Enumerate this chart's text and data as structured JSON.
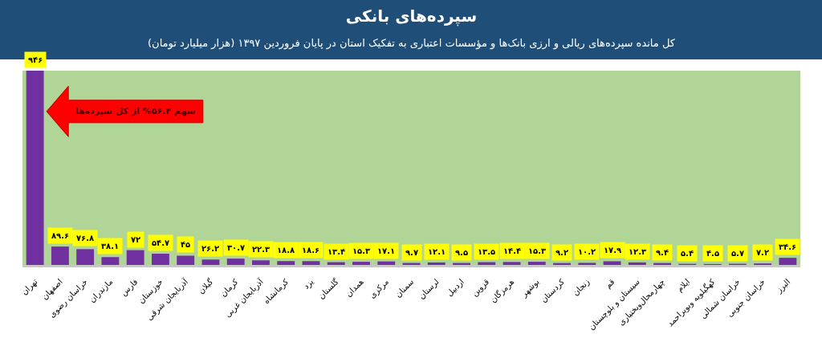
{
  "chart_data": {
    "type": "bar",
    "title": "سپرده‌های بانکی",
    "subtitle": "کل مانده سپرده‌های ریالی و ارزی بانک‌ها و مؤسسات اعتباری به تفکیک استان در پایان فروردین ۱۳۹۷ (هزار میلیارد تومان)",
    "annotations": [
      "سهم ۵۶.۴% از کل سپرده‌ها"
    ],
    "categories": [
      "تهران",
      "اصفهان",
      "خراسان رضوی",
      "مازندران",
      "فارس",
      "خوزستان",
      "آذربایجان شرقی",
      "گیلان",
      "کرمان",
      "آذربایجان غربی",
      "کرمانشاه",
      "یزد",
      "گلستان",
      "همدان",
      "مرکزی",
      "سمنان",
      "لرستان",
      "اردبیل",
      "قزوین",
      "هرمزگان",
      "بوشهر",
      "کردستان",
      "زنجان",
      "قم",
      "سیستان و بلوچستان",
      "چهارمحال‌وبختیاری",
      "ایلام",
      "کهگیلویه وبویراحمد",
      "خراسان شمالی",
      "خراسان جنوبی",
      "البرز"
    ],
    "values": [
      946,
      89.6,
      76.8,
      38.1,
      72,
      54.7,
      45,
      26.2,
      30.7,
      22.3,
      18.8,
      18.6,
      13.4,
      15.3,
      17.1,
      9.7,
      12.1,
      9.5,
      13.5,
      14.4,
      15.3,
      9.2,
      10.2,
      17.9,
      12.3,
      9.4,
      5.4,
      4.5,
      5.7,
      7.2,
      34.6
    ],
    "value_labels": [
      "۹۴۶",
      "۸۹.۶",
      "۷۶.۸",
      "۳۸.۱",
      "۷۲",
      "۵۴.۷",
      "۴۵",
      "۲۶.۲",
      "۳۰.۷",
      "۲۲.۳",
      "۱۸.۸",
      "۱۸.۶",
      "۱۳.۴",
      "۱۵.۳",
      "۱۷.۱",
      "۹.۷",
      "۱۲.۱",
      "۹.۵",
      "۱۳.۵",
      "۱۴.۴",
      "۱۵.۳",
      "۹.۲",
      "۱۰.۲",
      "۱۷.۹",
      "۱۲.۳",
      "۹.۴",
      "۵.۴",
      "۴.۵",
      "۵.۷",
      "۷.۲",
      "۳۴.۶"
    ],
    "color": "#7030a0"
  }
}
